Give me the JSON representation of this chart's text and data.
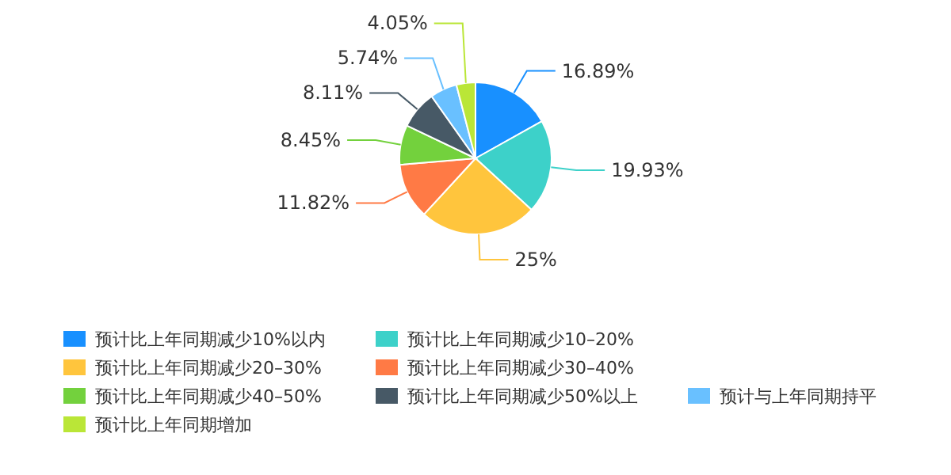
{
  "chart_data": {
    "type": "pie",
    "categories": [
      "预计比上年同期减少10%以内",
      "预计比上年同期减少10–20%",
      "预计比上年同期减少20–30%",
      "预计比上年同期减少30–40%",
      "预计比上年同期减少40–50%",
      "预计比上年同期减少50%以上",
      "预计与上年同期持平",
      "预计比上年同期增加"
    ],
    "values": [
      16.89,
      19.93,
      25,
      11.82,
      8.45,
      8.11,
      5.74,
      4.05
    ],
    "colors": [
      "#1890ff",
      "#3dd1c9",
      "#ffc53d",
      "#ff7a45",
      "#73d13d",
      "#475966",
      "#69c0ff",
      "#bae637"
    ],
    "value_labels": [
      "16.89%",
      "19.93%",
      "25%",
      "11.82%",
      "8.45%",
      "8.11%",
      "5.74%",
      "4.05%"
    ],
    "legend": "bottom"
  }
}
